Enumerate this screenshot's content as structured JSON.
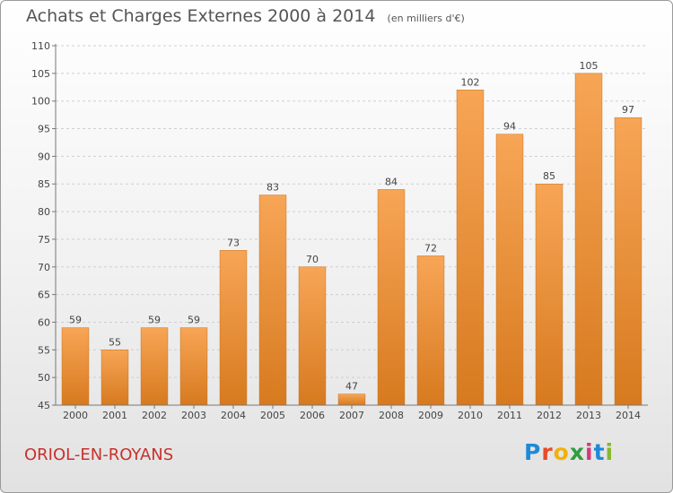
{
  "title": "Achats et Charges Externes 2000 à 2014",
  "unit": "(en milliers d'€)",
  "commune": "ORIOL-EN-ROYANS",
  "logo": {
    "letters": [
      "P",
      "r",
      "o",
      "x",
      "i",
      "t",
      "i"
    ]
  },
  "colors": {
    "bar_top": "#f7a556",
    "bar_bottom": "#d77a1f",
    "commune": "#c9312b"
  },
  "chart_data": {
    "type": "bar",
    "categories": [
      "2000",
      "2001",
      "2002",
      "2003",
      "2004",
      "2005",
      "2006",
      "2007",
      "2008",
      "2009",
      "2010",
      "2011",
      "2012",
      "2013",
      "2014"
    ],
    "values": [
      59,
      55,
      59,
      59,
      73,
      83,
      70,
      47,
      84,
      72,
      102,
      94,
      85,
      105,
      97
    ],
    "ylim": [
      45,
      110
    ],
    "yticks": [
      45,
      50,
      55,
      60,
      65,
      70,
      75,
      80,
      85,
      90,
      95,
      100,
      105,
      110
    ],
    "grid": true
  }
}
